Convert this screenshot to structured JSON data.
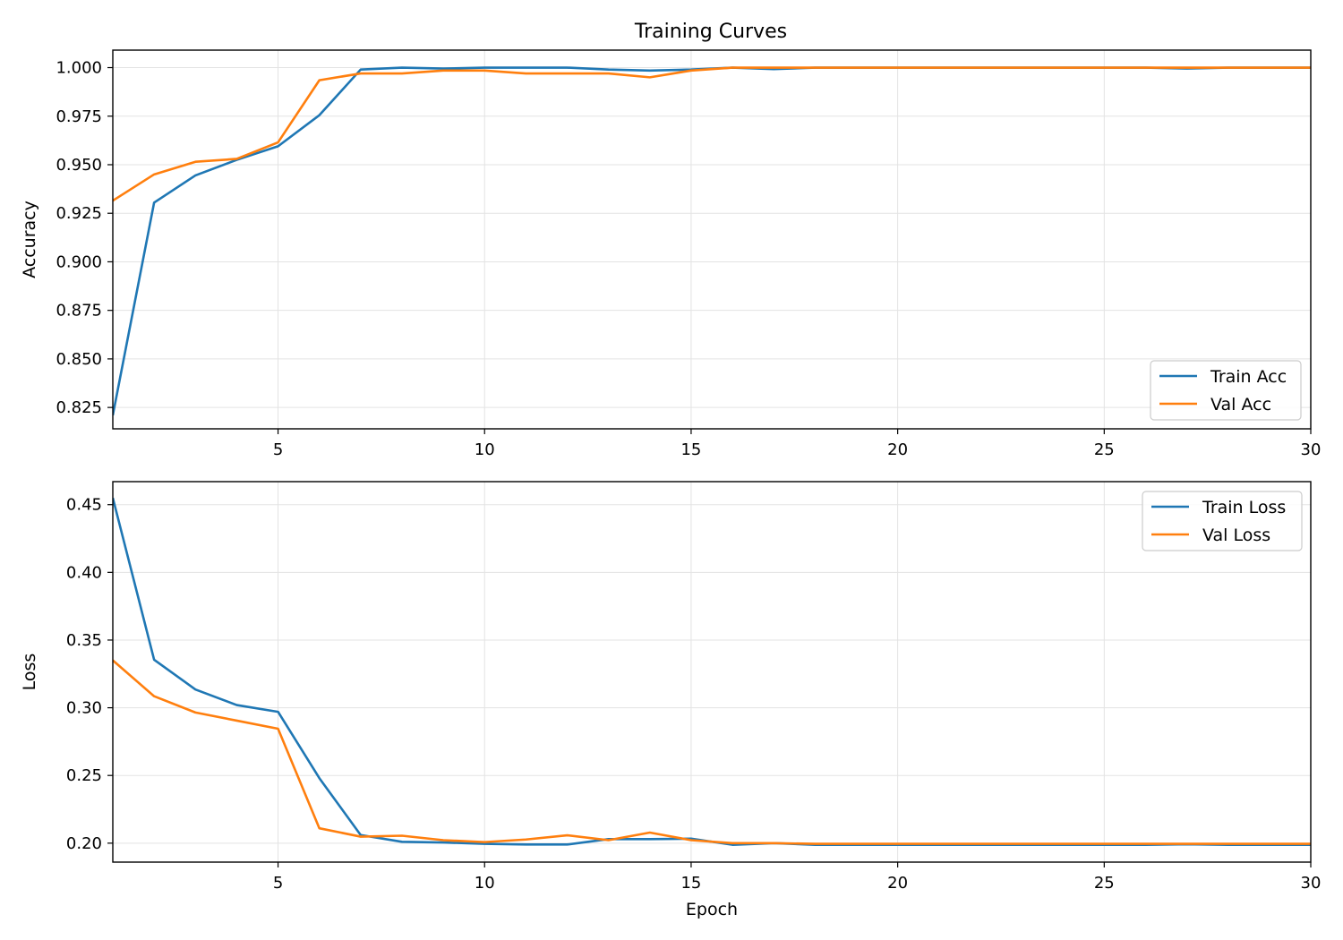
{
  "figure": {
    "title": "Training Curves"
  },
  "chart_data": [
    {
      "type": "line",
      "title": "Training Curves",
      "xlabel": "",
      "ylabel": "Accuracy",
      "xlim": [
        1,
        30
      ],
      "ylim": [
        0.814,
        1.009
      ],
      "xticks": [
        5,
        10,
        15,
        20,
        25,
        30
      ],
      "yticks": [
        0.825,
        0.85,
        0.875,
        0.9,
        0.925,
        0.95,
        0.975,
        1.0
      ],
      "ytick_labels": [
        "0.825",
        "0.850",
        "0.875",
        "0.900",
        "0.925",
        "0.950",
        "0.975",
        "1.000"
      ],
      "grid": true,
      "legend_position": "lower-right",
      "x": [
        1,
        2,
        3,
        4,
        5,
        6,
        7,
        8,
        9,
        10,
        11,
        12,
        13,
        14,
        15,
        16,
        17,
        18,
        19,
        20,
        21,
        22,
        23,
        24,
        25,
        26,
        27,
        28,
        29,
        30
      ],
      "series": [
        {
          "name": "Train Acc",
          "color": "#1f77b4",
          "values": [
            0.821,
            0.9305,
            0.9445,
            0.9525,
            0.9595,
            0.9755,
            0.999,
            1.0,
            0.9995,
            1.0,
            1.0,
            1.0,
            0.999,
            0.9985,
            0.999,
            1.0,
            0.9992,
            1.0,
            1.0,
            1.0,
            1.0,
            1.0,
            1.0,
            1.0,
            1.0,
            1.0,
            0.9995,
            1.0,
            1.0,
            1.0
          ]
        },
        {
          "name": "Val Acc",
          "color": "#ff7f0e",
          "values": [
            0.9315,
            0.945,
            0.9515,
            0.953,
            0.9615,
            0.9935,
            0.997,
            0.997,
            0.9985,
            0.9985,
            0.997,
            0.997,
            0.997,
            0.995,
            0.9985,
            1.0,
            1.0,
            1.0,
            1.0,
            1.0,
            1.0,
            1.0,
            1.0,
            1.0,
            1.0,
            1.0,
            1.0,
            1.0,
            1.0,
            1.0
          ]
        }
      ]
    },
    {
      "type": "line",
      "title": "",
      "xlabel": "Epoch",
      "ylabel": "Loss",
      "xlim": [
        1,
        30
      ],
      "ylim": [
        0.186,
        0.467
      ],
      "xticks": [
        5,
        10,
        15,
        20,
        25,
        30
      ],
      "yticks": [
        0.2,
        0.25,
        0.3,
        0.35,
        0.4,
        0.45
      ],
      "ytick_labels": [
        "0.20",
        "0.25",
        "0.30",
        "0.35",
        "0.40",
        "0.45"
      ],
      "grid": true,
      "legend_position": "upper-right",
      "x": [
        1,
        2,
        3,
        4,
        5,
        6,
        7,
        8,
        9,
        10,
        11,
        12,
        13,
        14,
        15,
        16,
        17,
        18,
        19,
        20,
        21,
        22,
        23,
        24,
        25,
        26,
        27,
        28,
        29,
        30
      ],
      "series": [
        {
          "name": "Train Loss",
          "color": "#1f77b4",
          "values": [
            0.455,
            0.3355,
            0.3135,
            0.302,
            0.297,
            0.248,
            0.206,
            0.201,
            0.2005,
            0.1995,
            0.199,
            0.199,
            0.203,
            0.203,
            0.2033,
            0.1988,
            0.2,
            0.1988,
            0.1988,
            0.1988,
            0.1988,
            0.1988,
            0.1988,
            0.1988,
            0.1988,
            0.1988,
            0.1992,
            0.1988,
            0.1988,
            0.1988
          ]
        },
        {
          "name": "Val Loss",
          "color": "#ff7f0e",
          "values": [
            0.335,
            0.3085,
            0.2965,
            0.2905,
            0.2845,
            0.211,
            0.2048,
            0.2055,
            0.2022,
            0.2008,
            0.2027,
            0.2058,
            0.2022,
            0.2078,
            0.2022,
            0.2,
            0.2,
            0.1995,
            0.1995,
            0.1995,
            0.1995,
            0.1995,
            0.1995,
            0.1995,
            0.1995,
            0.1995,
            0.1995,
            0.1995,
            0.1995,
            0.1995
          ]
        }
      ]
    }
  ]
}
